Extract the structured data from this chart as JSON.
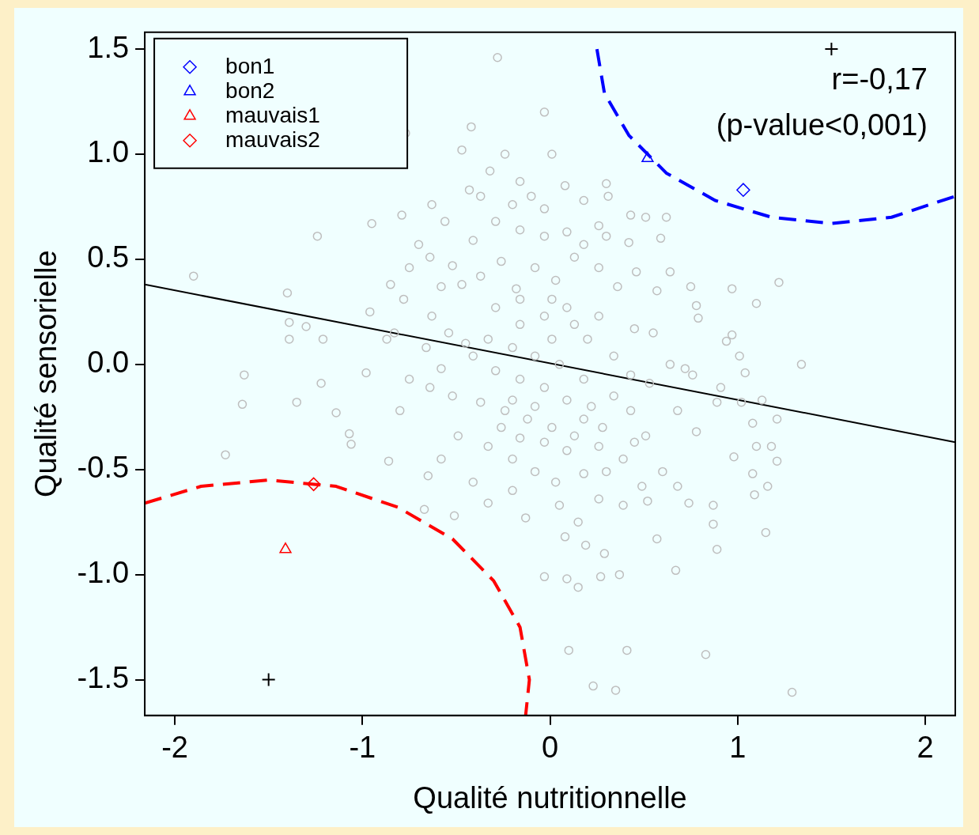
{
  "chart_data": {
    "type": "scatter",
    "xlabel": "Qualité nutritionnelle",
    "ylabel": "Qualité sensorielle",
    "xlim": [
      -2.16,
      2.16
    ],
    "ylim": [
      -1.67,
      1.58
    ],
    "xticks": [
      -2,
      -1,
      0,
      1,
      2
    ],
    "yticks": [
      -1.5,
      {
        "value": -1,
        "label": "-1.0"
      },
      -0.5,
      {
        "value": 0,
        "label": "0.0"
      },
      0.5,
      {
        "value": 1,
        "label": "1.0"
      },
      1.5
    ],
    "grid": false,
    "legend": "top left",
    "annotations": [
      "r=-0,17",
      "(p-value<0,001)"
    ],
    "series": [
      {
        "type": "scatter",
        "color": "#bebebe",
        "marker": "circle",
        "x": [
          -1.9,
          -0.28,
          -0.03,
          -0.77,
          -0.42,
          -0.47,
          -1.24,
          -0.95,
          -1.63,
          -1.64,
          -1.73,
          -1.4,
          -1.39,
          -1.3,
          -1.39,
          -1.21,
          -1.35,
          -1.14,
          -1.22,
          -1.07,
          -1.06,
          -0.98,
          -0.86,
          -0.8,
          -0.67,
          -0.51,
          -0.65,
          -0.78,
          -0.63,
          -0.54,
          -0.7,
          -0.63,
          -0.79,
          -0.43,
          -0.32,
          -0.24,
          -0.16,
          -0.1,
          0.01,
          0.08,
          0.18,
          0.31,
          0.3,
          0.43,
          0.51,
          0.62,
          0.59,
          0.42,
          0.3,
          0.09,
          -0.03,
          -0.16,
          -0.29,
          -0.41,
          -0.52,
          -0.64,
          -0.47,
          -0.37,
          -0.26,
          -0.18,
          -0.08,
          0.03,
          0.13,
          0.26,
          0.36,
          0.46,
          0.64,
          0.57,
          0.75,
          0.97,
          1.1,
          1.22,
          0.78,
          0.79,
          0.45,
          0.55,
          0.97,
          0.94,
          1.34,
          1.04,
          0.76,
          0.64,
          0.53,
          0.91,
          1.02,
          1.13,
          1.21,
          1.08,
          1.1,
          1.18,
          1.21,
          0.98,
          1.08,
          1.16,
          1.09,
          1.15,
          0.87,
          0.87,
          0.89,
          0.68,
          0.74,
          0.6,
          0.52,
          0.49,
          0.57,
          0.67,
          0.37,
          0.29,
          0.19,
          0.08,
          -0.03,
          0.09,
          0.15,
          0.27,
          0.1,
          0.41,
          0.83,
          0.23,
          0.35,
          1.29,
          -0.13,
          0.05,
          -0.2,
          -0.33,
          -0.41,
          -0.58,
          -0.49,
          -0.33,
          -0.2,
          -0.08,
          0.03,
          0.18,
          0.3,
          0.39,
          0.26,
          0.13,
          0.01,
          -0.12,
          -0.24,
          -0.37,
          -0.52,
          -0.64,
          -0.75,
          -0.58,
          -0.41,
          -0.29,
          -0.16,
          -0.03,
          0.09,
          0.22,
          0.34,
          0.43,
          0.18,
          0.05,
          -0.08,
          -0.2,
          -0.33,
          -0.45,
          -0.66,
          -0.83,
          -0.96,
          -0.87,
          0.01,
          0.13,
          0.26,
          0.2,
          -0.03,
          -0.16,
          -0.29,
          -0.16,
          0.01,
          0.09,
          0.34,
          0.43,
          -0.2,
          -0.08,
          0.18,
          0.28,
          0.09,
          -0.03,
          -0.16,
          -0.26,
          0.26,
          0.39,
          0.15,
          0.45,
          0.51,
          0.68,
          0.78,
          0.89,
          0.72,
          1.01,
          0.26,
          0.18,
          -0.2,
          -0.03,
          -0.37,
          -0.56,
          -0.75,
          -0.58,
          -0.85
        ],
        "values": [
          0.42,
          1.46,
          1.2,
          1.1,
          1.13,
          1.02,
          0.61,
          0.67,
          -0.05,
          -0.19,
          -0.43,
          0.34,
          0.2,
          0.18,
          0.12,
          0.12,
          -0.18,
          -0.23,
          -0.09,
          -0.33,
          -0.38,
          -0.04,
          -0.46,
          -0.22,
          -0.69,
          -0.72,
          -0.53,
          0.31,
          0.23,
          0.15,
          0.57,
          0.76,
          0.71,
          0.83,
          0.92,
          1.0,
          0.87,
          0.8,
          1.0,
          0.85,
          0.78,
          0.8,
          0.86,
          0.71,
          0.7,
          0.7,
          0.6,
          0.58,
          0.61,
          0.63,
          0.61,
          0.64,
          0.68,
          0.59,
          0.47,
          0.51,
          0.38,
          0.42,
          0.49,
          0.36,
          0.46,
          0.4,
          0.51,
          0.46,
          0.37,
          0.44,
          0.44,
          0.35,
          0.37,
          0.36,
          0.29,
          0.39,
          0.28,
          0.22,
          0.17,
          0.15,
          0.14,
          0.11,
          0.0,
          -0.04,
          -0.05,
          0.0,
          -0.09,
          -0.11,
          -0.18,
          -0.17,
          -0.26,
          -0.28,
          -0.39,
          -0.39,
          -0.46,
          -0.44,
          -0.52,
          -0.58,
          -0.62,
          -0.8,
          -0.67,
          -0.76,
          -0.88,
          -0.58,
          -0.66,
          -0.51,
          -0.65,
          -0.58,
          -0.83,
          -0.98,
          -1.0,
          -0.9,
          -0.86,
          -0.82,
          -1.01,
          -1.02,
          -1.06,
          -1.01,
          -1.36,
          -1.36,
          -1.38,
          -1.53,
          -1.55,
          -1.56,
          -0.73,
          -0.67,
          -0.6,
          -0.66,
          -0.56,
          -0.45,
          -0.34,
          -0.39,
          -0.45,
          -0.51,
          -0.56,
          -0.52,
          -0.51,
          -0.45,
          -0.39,
          -0.34,
          -0.3,
          -0.26,
          -0.22,
          -0.18,
          -0.15,
          -0.11,
          -0.07,
          -0.02,
          0.04,
          -0.03,
          -0.07,
          -0.11,
          -0.17,
          -0.2,
          -0.15,
          -0.22,
          -0.07,
          0.0,
          0.04,
          0.08,
          0.12,
          0.1,
          0.08,
          0.15,
          0.25,
          0.12,
          0.12,
          0.19,
          0.23,
          0.12,
          0.23,
          0.19,
          0.27,
          0.31,
          0.31,
          0.27,
          0.04,
          -0.05,
          -0.17,
          -0.2,
          -0.26,
          -0.3,
          -0.41,
          -0.37,
          -0.35,
          -0.3,
          -0.64,
          -0.67,
          -0.75,
          -0.37,
          -0.34,
          -0.22,
          -0.32,
          -0.18,
          -0.02,
          0.04,
          0.66,
          0.57,
          0.76,
          0.74,
          0.8,
          0.68,
          0.46,
          0.37,
          0.38
        ]
      },
      {
        "type": "line",
        "color": "#000000",
        "marker": "none",
        "line_style": "solid",
        "x": [
          -2.16,
          2.16
        ],
        "values": [
          0.38,
          -0.37
        ]
      },
      {
        "type": "line",
        "color": "#0000ff",
        "marker": "none",
        "line_style": "dashed",
        "x": [
          0.25,
          0.29,
          0.42,
          0.62,
          0.88,
          1.18,
          1.5,
          1.82,
          2.16
        ],
        "values": [
          1.5,
          1.29,
          1.09,
          0.91,
          0.78,
          0.7,
          0.67,
          0.7,
          0.8
        ]
      },
      {
        "type": "line",
        "color": "#ff0000",
        "marker": "none",
        "line_style": "dashed",
        "x": [
          -2.16,
          -1.86,
          -1.5,
          -1.14,
          -0.81,
          -0.52,
          -0.3,
          -0.16,
          -0.11,
          -0.13
        ],
        "values": [
          -0.66,
          -0.58,
          -0.55,
          -0.58,
          -0.68,
          -0.83,
          -1.03,
          -1.25,
          -1.5,
          -1.67
        ]
      },
      {
        "type": "scatter",
        "color": "#000000",
        "marker": "cross",
        "x": [
          -1.5,
          1.5
        ],
        "values": [
          -1.5,
          1.5
        ]
      },
      {
        "name": "bon1",
        "type": "scatter",
        "color": "#0000ff",
        "marker": "diamond",
        "x": [
          1.03
        ],
        "values": [
          0.83
        ]
      },
      {
        "name": "bon2",
        "type": "scatter",
        "color": "#0000ff",
        "marker": "triangle",
        "x": [
          0.52
        ],
        "values": [
          0.98
        ]
      },
      {
        "name": "mauvais1",
        "type": "scatter",
        "color": "#ff0000",
        "marker": "triangle",
        "x": [
          -1.41
        ],
        "values": [
          -0.88
        ]
      },
      {
        "name": "mauvais2",
        "type": "scatter",
        "color": "#ff0000",
        "marker": "diamond",
        "x": [
          -1.26
        ],
        "values": [
          -0.57
        ]
      }
    ]
  }
}
